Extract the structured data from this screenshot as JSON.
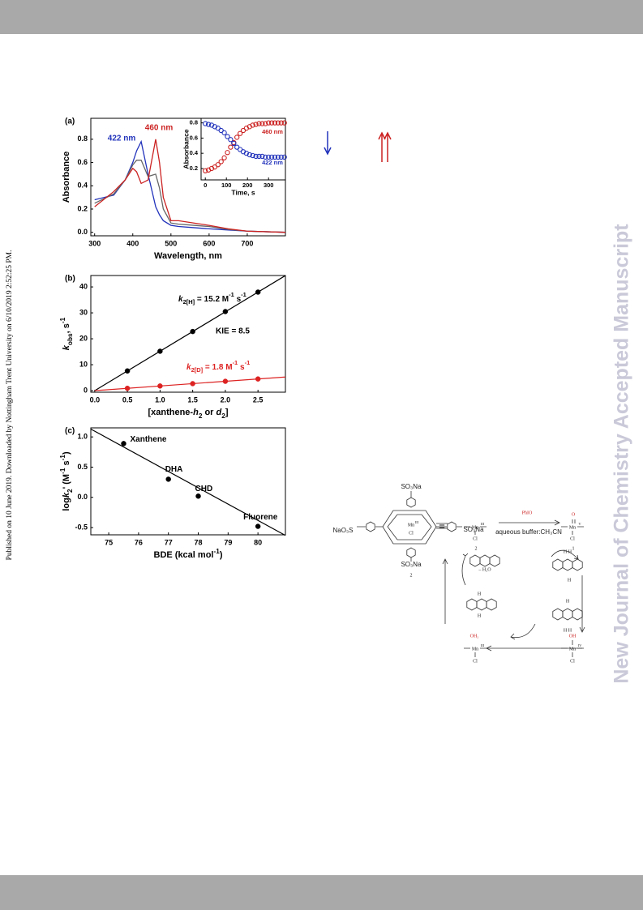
{
  "side_note": "Published on 10 June 2019. Downloaded by Nottingham Trent University on 6/10/2019 2:52:25 PM.",
  "watermark": "New Journal of Chemistry Accepted Manuscript",
  "chart_data": [
    {
      "type": "line",
      "label": "(a)",
      "x": [
        300,
        350,
        380,
        400,
        410,
        422,
        440,
        460,
        470,
        480,
        500,
        520,
        560,
        600,
        650,
        700,
        800
      ],
      "series": [
        {
          "color": "#2233bb",
          "values": [
            0.28,
            0.32,
            0.45,
            0.6,
            0.7,
            0.78,
            0.5,
            0.22,
            0.15,
            0.1,
            0.06,
            0.05,
            0.04,
            0.03,
            0.02,
            0.01,
            0
          ]
        },
        {
          "color": "#666666",
          "values": [
            0.25,
            0.33,
            0.45,
            0.58,
            0.62,
            0.62,
            0.48,
            0.5,
            0.38,
            0.2,
            0.08,
            0.07,
            0.06,
            0.05,
            0.025,
            0.01,
            0
          ]
        },
        {
          "color": "#cc2222",
          "values": [
            0.22,
            0.35,
            0.45,
            0.55,
            0.52,
            0.42,
            0.45,
            0.8,
            0.6,
            0.3,
            0.1,
            0.1,
            0.08,
            0.06,
            0.03,
            0.01,
            0
          ]
        }
      ],
      "xlim": [
        290,
        800
      ],
      "ylim": [
        -0.03,
        0.98
      ],
      "xticks": [
        300,
        400,
        500,
        600,
        700
      ],
      "yticks": [
        {
          "value": 0,
          "label": "0.0"
        },
        0.2,
        0.4,
        0.6,
        0.8
      ],
      "xlabel": "Wavelength, nm",
      "ylabel": "Absorbance",
      "annotations": [
        {
          "text": "422 nm",
          "color": "#2233bb"
        },
        {
          "text": "460 nm",
          "color": "#cc2222"
        }
      ]
    },
    {
      "type": "scatter",
      "marker": "open",
      "x": [
        0,
        15,
        30,
        45,
        60,
        75,
        90,
        105,
        120,
        135,
        150,
        165,
        180,
        195,
        210,
        225,
        240,
        255,
        270,
        285,
        300,
        315,
        330,
        345,
        360,
        375
      ],
      "series": [
        {
          "color": "#cc2222",
          "values": [
            0.17,
            0.18,
            0.2,
            0.22,
            0.25,
            0.29,
            0.34,
            0.41,
            0.48,
            0.54,
            0.61,
            0.66,
            0.7,
            0.73,
            0.75,
            0.77,
            0.78,
            0.79,
            0.79,
            0.79,
            0.8,
            0.8,
            0.8,
            0.8,
            0.8,
            0.8
          ]
        },
        {
          "color": "#2233bb",
          "values": [
            0.79,
            0.78,
            0.77,
            0.75,
            0.73,
            0.7,
            0.67,
            0.62,
            0.58,
            0.53,
            0.48,
            0.45,
            0.42,
            0.4,
            0.38,
            0.37,
            0.36,
            0.36,
            0.36,
            0.35,
            0.35,
            0.35,
            0.35,
            0.35,
            0.35,
            0.35
          ]
        }
      ],
      "xlim": [
        -20,
        380
      ],
      "ylim": [
        0.05,
        0.86
      ],
      "xticks": [
        0,
        100,
        200,
        300
      ],
      "yticks": [
        0.2,
        0.4,
        0.6,
        0.8
      ],
      "xlabel": "Time, s",
      "ylabel": "Absorbance",
      "annotations": [
        {
          "text": "460 nm",
          "color": "#cc2222"
        },
        {
          "text": "422 nm",
          "color": "#2233bb"
        }
      ]
    },
    {
      "type": "scatter",
      "marker": "filled",
      "label": "(b)",
      "x": [
        0.5,
        1.0,
        1.5,
        2.0,
        2.5
      ],
      "series": [
        {
          "color": "#000000",
          "values": [
            7.6,
            15.2,
            22.8,
            30.5,
            38
          ],
          "fit_slope": 15.2
        },
        {
          "color": "#dd2222",
          "values": [
            0.9,
            1.8,
            2.7,
            3.6,
            4.5
          ],
          "fit_slope": 1.8
        }
      ],
      "xlim": [
        -0.06,
        2.92
      ],
      "ylim": [
        -0.6,
        44.4
      ],
      "xticks": [
        {
          "value": 0,
          "label": "0.0"
        },
        0.5,
        {
          "value": 1,
          "label": "1.0"
        },
        1.5,
        {
          "value": 2,
          "label": "2.0"
        },
        2.5
      ],
      "yticks": [
        0,
        10,
        20,
        30,
        40
      ],
      "xlabel": [
        "[xanthene-",
        "h",
        "2",
        " or ",
        "d",
        "2",
        "]"
      ],
      "ylabel": [
        "k",
        "obs",
        ", s",
        "-1"
      ],
      "annotations": [
        {
          "text": [
            "k",
            "2[H]",
            " = 15.2 M",
            "-1",
            " s",
            "-1"
          ],
          "color": "#000000"
        },
        {
          "text": "KIE = 8.5",
          "color": "#000000"
        },
        {
          "text": [
            "k",
            "2[D]",
            " = 1.8 M",
            "-1",
            " s",
            "-1"
          ],
          "color": "#dd2222"
        }
      ]
    },
    {
      "type": "scatter",
      "marker": "filled",
      "label": "(c)",
      "x": [
        75.5,
        77.0,
        78.0,
        80.0
      ],
      "series": [
        {
          "color": "#000000",
          "values": [
            0.89,
            0.3,
            0.02,
            -0.48
          ]
        }
      ],
      "point_labels": [
        "Xanthene",
        "DHA",
        "CHD",
        "Fluorene"
      ],
      "fit_line": {
        "x": [
          74.4,
          80.92
        ],
        "y": [
          1.13,
          -0.63
        ]
      },
      "xlim": [
        74.4,
        80.92
      ],
      "ylim": [
        -0.62,
        1.15
      ],
      "xticks": [
        75,
        76,
        77,
        78,
        79,
        80
      ],
      "yticks": [
        {
          "value": 1,
          "label": "1.0"
        },
        0.5,
        {
          "value": 0,
          "label": "0.0"
        },
        -0.5
      ],
      "xlabel": [
        "BDE (kcal mol",
        "-1",
        ")"
      ],
      "ylabel": [
        "log",
        "k",
        "2",
        "' (M",
        "-1",
        " s",
        "-1",
        ")"
      ]
    }
  ],
  "scheme": {
    "labels": [
      "SO₃Na",
      "NaO₃S",
      "SO₃Na",
      "SO₃Na",
      "2",
      "=",
      "Mn",
      "III",
      "Cl",
      "2",
      "PhIO",
      "aqueous buffer:CH₃CN",
      "O",
      "Mn",
      "V",
      "Cl",
      "1",
      "– H₂O",
      "OH₂",
      "Mn",
      "III",
      "Cl",
      "OH",
      "Mn",
      "IV",
      "Cl",
      "Mn",
      "III",
      "Cl",
      "H H",
      "H",
      "H",
      "H H",
      "H",
      "H"
    ]
  }
}
